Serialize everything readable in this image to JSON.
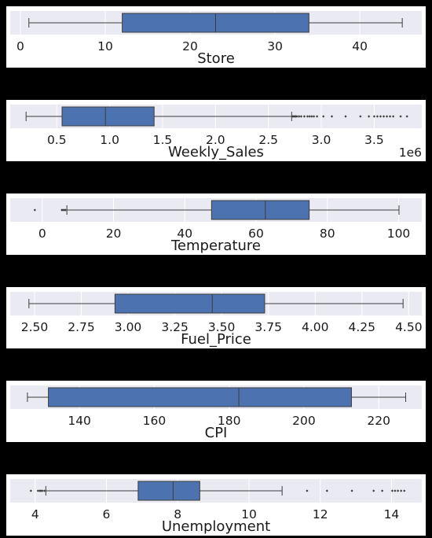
{
  "chart_data": [
    {
      "type": "box",
      "xlabel": "Store",
      "ticks": [
        0,
        10,
        20,
        30,
        40
      ],
      "tick_labels": [
        "0",
        "10",
        "20",
        "30",
        "40"
      ],
      "xlim": [
        -1.2,
        47.3
      ],
      "offset_text": "",
      "box": {
        "whislo": 1,
        "q1": 12,
        "median": 23,
        "q3": 34,
        "whishi": 45
      },
      "fliers": []
    },
    {
      "type": "box",
      "xlabel": "Weekly_Sales",
      "ticks": [
        0.5,
        1.0,
        1.5,
        2.0,
        2.5,
        3.0,
        3.5
      ],
      "tick_labels": [
        "0.5",
        "1.0",
        "1.5",
        "2.0",
        "2.5",
        "3.0",
        "3.5"
      ],
      "xlim": [
        0.06,
        3.95
      ],
      "offset_text": "1e6",
      "box": {
        "whislo": 0.21,
        "q1": 0.55,
        "median": 0.96,
        "q3": 1.42,
        "whishi": 2.72
      },
      "fliers": [
        2.73,
        2.74,
        2.75,
        2.76,
        2.77,
        2.79,
        2.81,
        2.84,
        2.87,
        2.89,
        2.91,
        2.93,
        2.96,
        3.02,
        3.1,
        3.23,
        3.37,
        3.45,
        3.5,
        3.53,
        3.56,
        3.59,
        3.62,
        3.65,
        3.68,
        3.75,
        3.81
      ]
    },
    {
      "type": "box",
      "xlabel": "Temperature",
      "ticks": [
        0,
        20,
        40,
        60,
        80,
        100
      ],
      "tick_labels": [
        "0",
        "20",
        "40",
        "60",
        "80",
        "100"
      ],
      "xlim": [
        -9,
        106.5
      ],
      "offset_text": "",
      "box": {
        "whislo": 6.9,
        "q1": 47.5,
        "median": 62.6,
        "q3": 74.9,
        "whishi": 100.1
      },
      "fliers": [
        -2.1,
        5.5,
        5.8,
        6.2,
        6.5
      ]
    },
    {
      "type": "box",
      "xlabel": "Fuel_Price",
      "ticks": [
        2.5,
        2.75,
        3.0,
        3.25,
        3.5,
        3.75,
        4.0,
        4.25,
        4.5
      ],
      "tick_labels": [
        "2.50",
        "2.75",
        "3.00",
        "3.25",
        "3.50",
        "3.75",
        "4.00",
        "4.25",
        "4.50"
      ],
      "xlim": [
        2.37,
        4.57
      ],
      "offset_text": "",
      "box": {
        "whislo": 2.47,
        "q1": 2.93,
        "median": 3.45,
        "q3": 3.73,
        "whishi": 4.47
      },
      "fliers": []
    },
    {
      "type": "box",
      "xlabel": "CPI",
      "ticks": [
        140,
        160,
        180,
        200,
        220
      ],
      "tick_labels": [
        "140",
        "160",
        "180",
        "200",
        "220"
      ],
      "xlim": [
        121.5,
        231.5
      ],
      "offset_text": "",
      "box": {
        "whislo": 126.1,
        "q1": 131.7,
        "median": 182.6,
        "q3": 212.7,
        "whishi": 227.2
      },
      "fliers": []
    },
    {
      "type": "box",
      "xlabel": "Unemployment",
      "ticks": [
        4,
        6,
        8,
        10,
        12,
        14
      ],
      "tick_labels": [
        "4",
        "6",
        "8",
        "10",
        "12",
        "14"
      ],
      "xlim": [
        3.3,
        14.85
      ],
      "offset_text": "",
      "box": {
        "whislo": 4.3,
        "q1": 6.89,
        "median": 7.87,
        "q3": 8.62,
        "whishi": 10.93
      },
      "fliers": [
        3.88,
        4.08,
        4.13,
        4.16,
        4.2,
        4.26,
        11.63,
        12.19,
        12.89,
        13.5,
        13.74,
        14.02,
        14.1,
        14.18,
        14.27,
        14.36
      ]
    }
  ],
  "colors": {
    "page_background": "#000000",
    "panel_background": "#ffffff",
    "axes_face": "#eaeaf2",
    "grid": "#ffffff",
    "box_fill": "#4c72b0",
    "line": "#3d3d3d",
    "text": "#1a1a1a"
  },
  "grid": true
}
